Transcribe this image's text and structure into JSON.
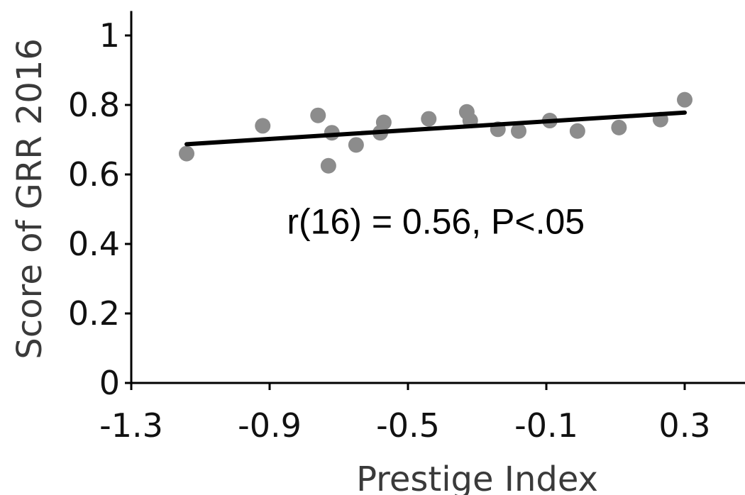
{
  "chart_data": {
    "type": "scatter",
    "title": "",
    "xlabel": "Prestige Index",
    "ylabel": "Score of GRR 2016",
    "xlim": [
      -1.3,
      0.45
    ],
    "ylim": [
      0,
      1.05
    ],
    "xticks": [
      -1.3,
      -0.9,
      -0.5,
      -0.1,
      0.3
    ],
    "xtick_labels": [
      "-1.3",
      "-0.9",
      "-0.5",
      "-0.1",
      "0.3"
    ],
    "yticks": [
      0,
      0.2,
      0.4,
      0.6,
      0.8,
      1
    ],
    "ytick_labels": [
      "0",
      "0.2",
      "0.4",
      "0.6",
      "0.8",
      "1"
    ],
    "grid": false,
    "legend": "none",
    "point_color": "#8c8c8c",
    "line_color": "#000000",
    "points": [
      {
        "x": -1.14,
        "y": 0.66
      },
      {
        "x": -0.92,
        "y": 0.74
      },
      {
        "x": -0.76,
        "y": 0.77
      },
      {
        "x": -0.72,
        "y": 0.72
      },
      {
        "x": -0.73,
        "y": 0.625
      },
      {
        "x": -0.65,
        "y": 0.685
      },
      {
        "x": -0.58,
        "y": 0.72
      },
      {
        "x": -0.57,
        "y": 0.75
      },
      {
        "x": -0.44,
        "y": 0.76
      },
      {
        "x": -0.33,
        "y": 0.78
      },
      {
        "x": -0.32,
        "y": 0.755
      },
      {
        "x": -0.24,
        "y": 0.73
      },
      {
        "x": -0.18,
        "y": 0.725
      },
      {
        "x": -0.09,
        "y": 0.755
      },
      {
        "x": -0.01,
        "y": 0.725
      },
      {
        "x": 0.11,
        "y": 0.735
      },
      {
        "x": 0.23,
        "y": 0.758
      },
      {
        "x": 0.3,
        "y": 0.815
      }
    ],
    "trendline": {
      "x": [
        -1.14,
        0.3
      ],
      "y": [
        0.687,
        0.778
      ]
    },
    "annotation": "r(16) = 0.56, P<.05",
    "annotation_anchor": {
      "x": -0.85,
      "y": 0.43
    }
  }
}
